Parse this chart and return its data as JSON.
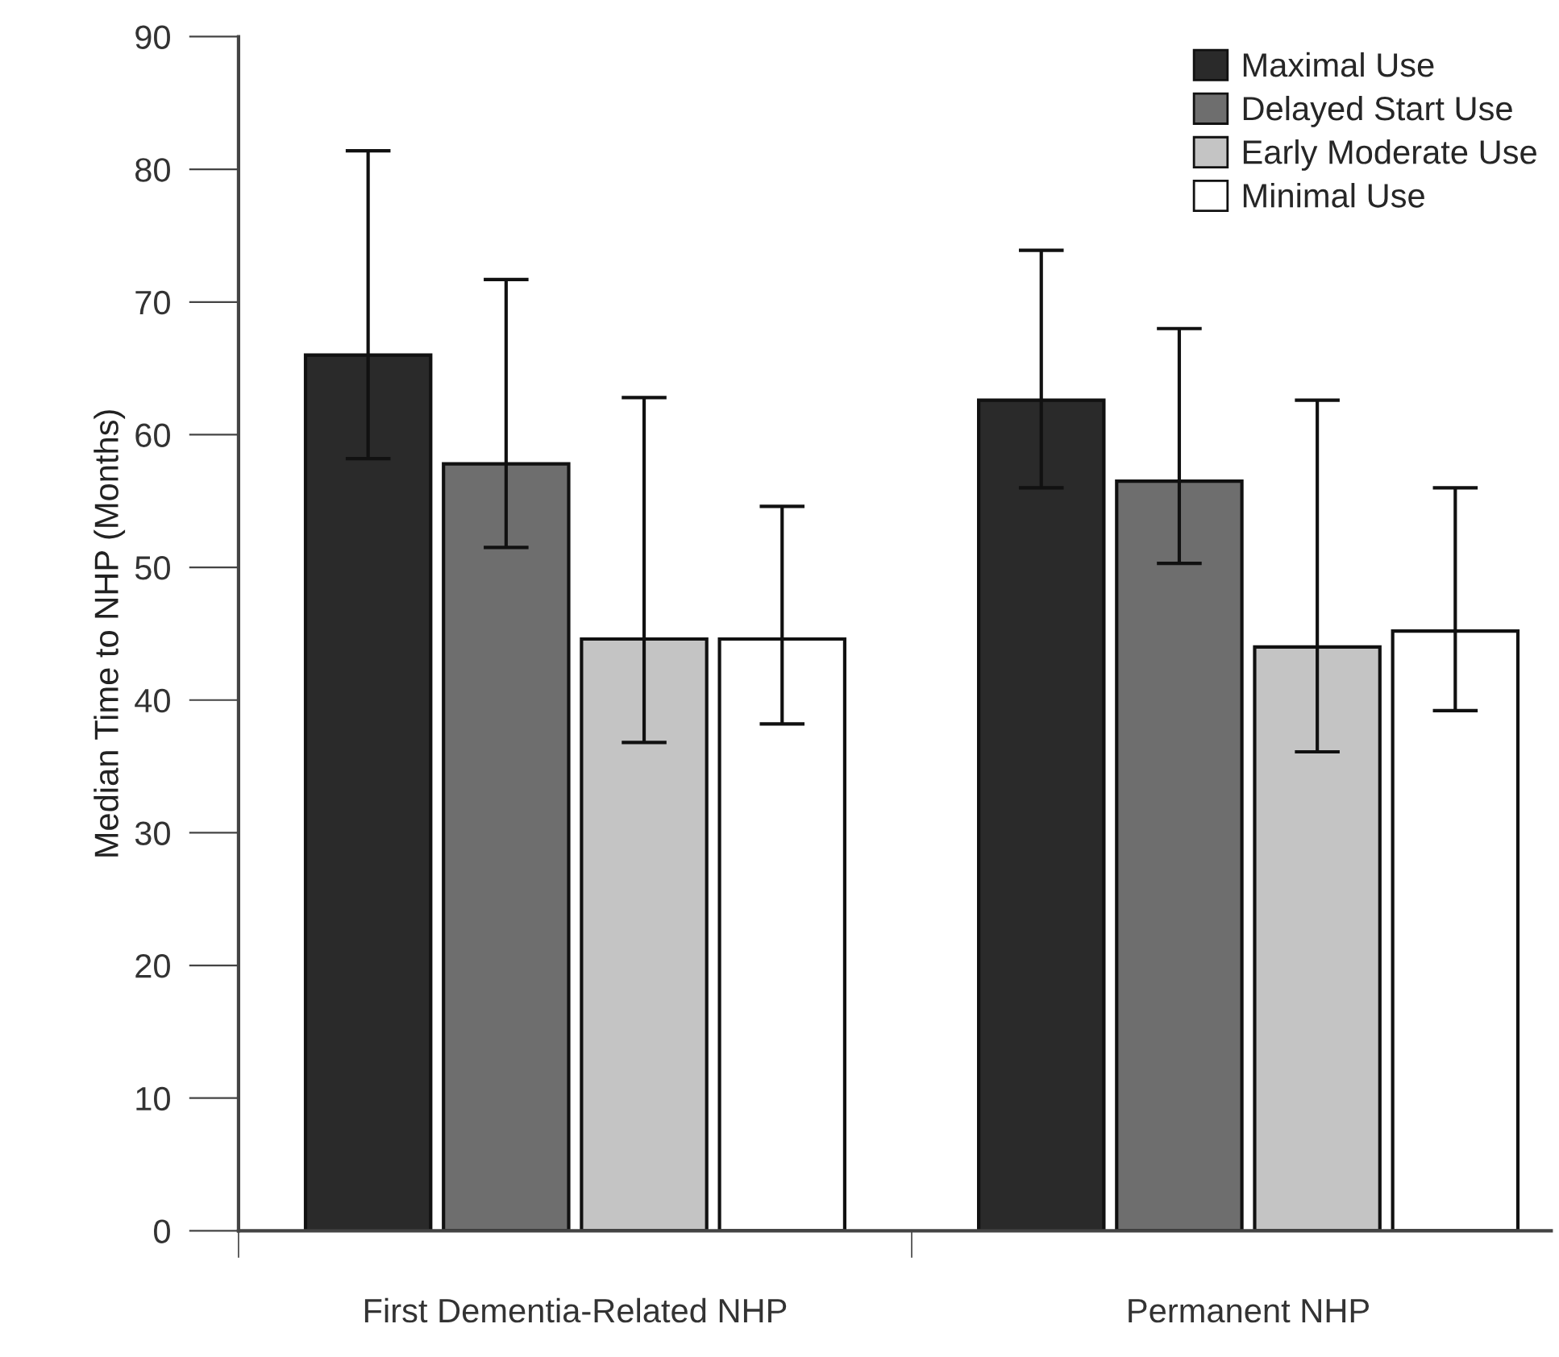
{
  "chart_data": {
    "type": "bar",
    "ylabel": "Median Time to NHP (Months)",
    "categories": [
      "First Dementia-Related NHP",
      "Permanent NHP"
    ],
    "series": [
      {
        "name": "Maximal Use",
        "color": "#2a2a2a",
        "values": [
          66.0,
          62.6
        ],
        "errors": [
          [
            58.2,
            81.4
          ],
          [
            56.0,
            73.9
          ]
        ]
      },
      {
        "name": "Delayed Start Use",
        "color": "#6e6e6e",
        "values": [
          57.8,
          56.5
        ],
        "errors": [
          [
            51.5,
            71.7
          ],
          [
            50.3,
            68.0
          ]
        ]
      },
      {
        "name": "Early Moderate Use",
        "color": "#c4c4c4",
        "values": [
          44.6,
          44.0
        ],
        "errors": [
          [
            36.8,
            62.8
          ],
          [
            36.1,
            62.6
          ]
        ]
      },
      {
        "name": "Minimal Use",
        "color": "#ffffff",
        "values": [
          44.6,
          45.2
        ],
        "errors": [
          [
            38.2,
            54.6
          ],
          [
            39.2,
            56.0
          ]
        ]
      }
    ],
    "ylim": [
      0,
      90
    ],
    "yticks": [
      0,
      10,
      20,
      30,
      40,
      50,
      60,
      70,
      80,
      90
    ],
    "grid": false,
    "legend": "top right"
  }
}
